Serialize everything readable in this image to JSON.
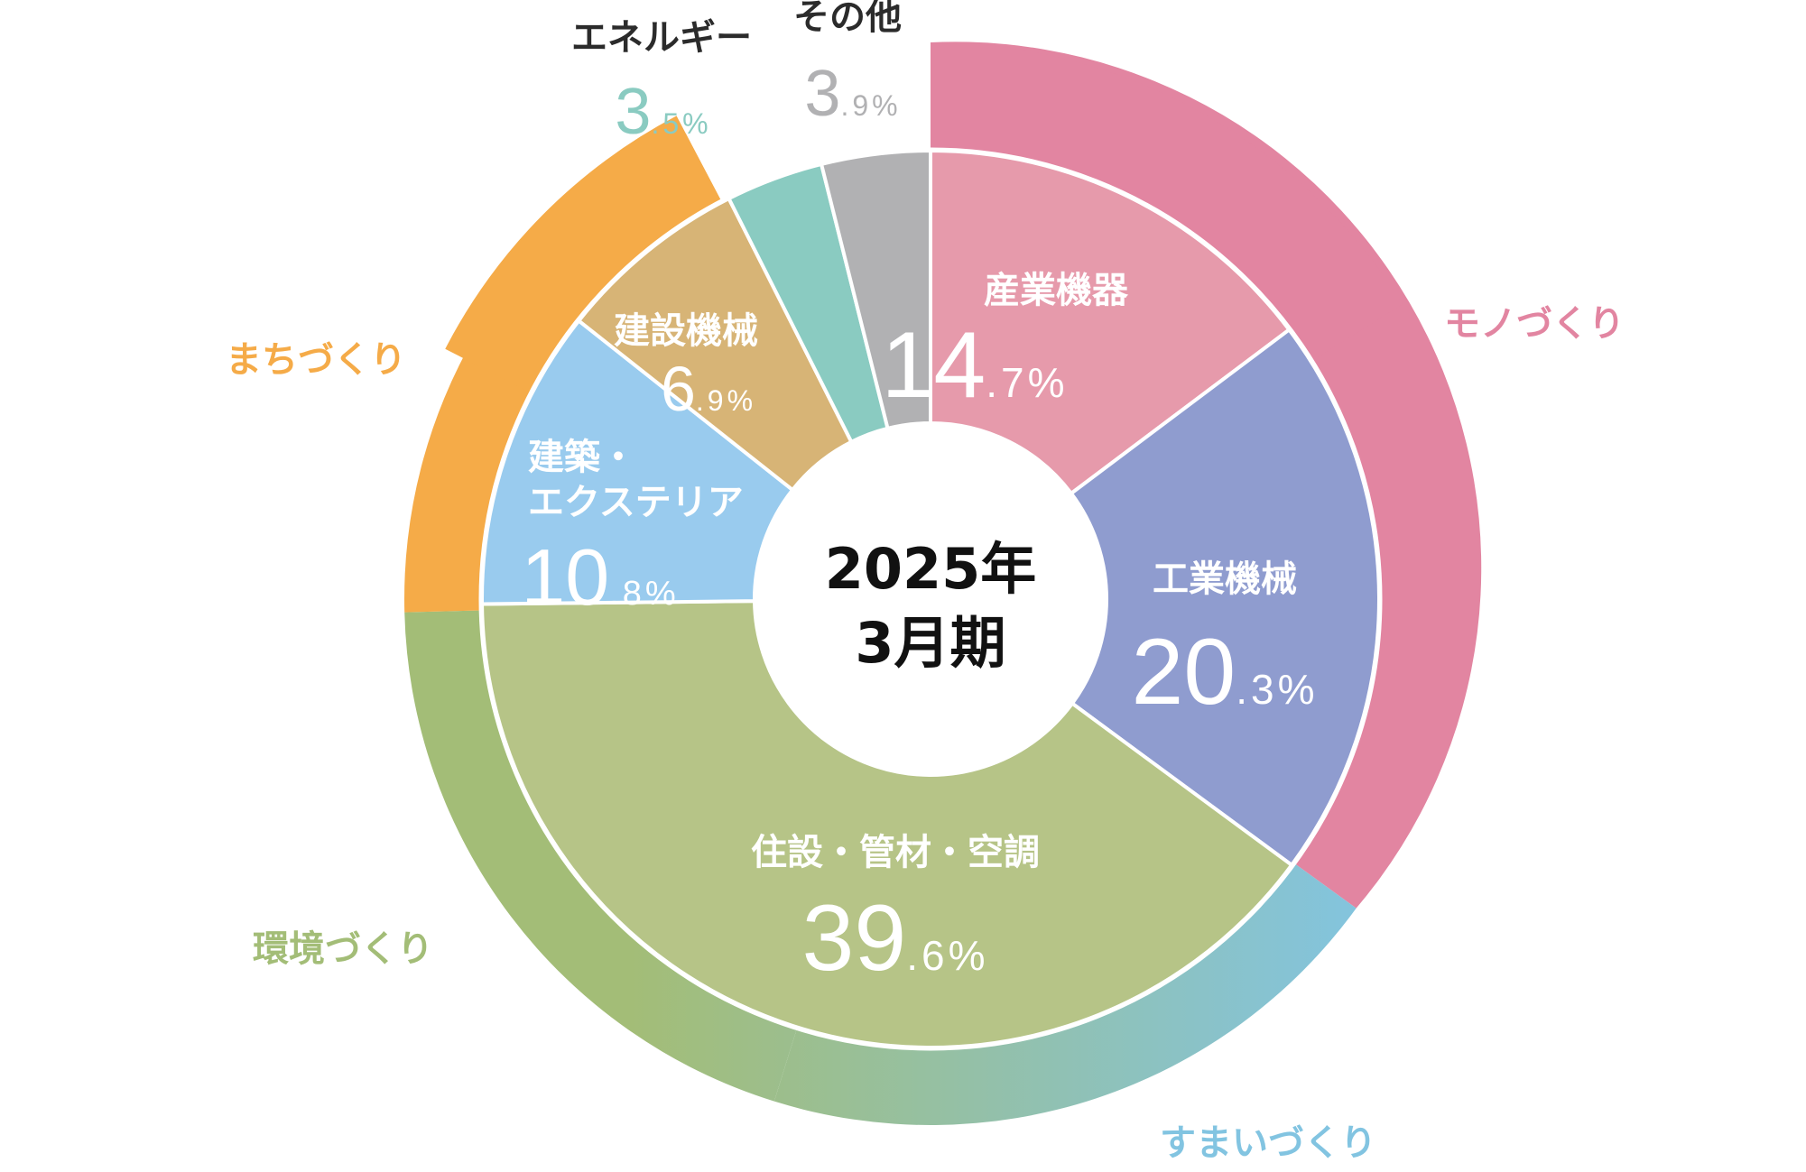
{
  "chart_data": {
    "type": "pie",
    "title": "2025年\n3月期",
    "inner": {
      "slices": [
        {
          "label": "産業機器",
          "value": 14.7,
          "display": [
            "14",
            ".7%"
          ],
          "color": "#e69aab"
        },
        {
          "label": "工業機械",
          "value": 20.3,
          "display": [
            "20",
            ".3%"
          ],
          "color": "#8f9ccf"
        },
        {
          "label": "住設・管材・空調",
          "value": 39.6,
          "display": [
            "39",
            ".6%"
          ],
          "color": "#b6c487"
        },
        {
          "label": "建築・\nエクステリア",
          "value": 10.8,
          "display": [
            "10",
            ".8%"
          ],
          "color": "#99cbee"
        },
        {
          "label": "建設機械",
          "value": 6.9,
          "display": [
            "6",
            ".9%"
          ],
          "color": "#d7b476"
        },
        {
          "label": "エネルギー",
          "value": 3.5,
          "display": [
            "3",
            ".5%"
          ],
          "color": "#8acbc1"
        },
        {
          "label": "その他",
          "value": 3.9,
          "display": [
            "3",
            ".9%"
          ],
          "color": "#b1b1b3"
        }
      ]
    },
    "outer": {
      "segments": [
        {
          "label": "モノづくり",
          "value": 35.0,
          "color": "#e285a1"
        },
        {
          "label": "すまいづくり",
          "value": 19.8,
          "color": "#82c4e1"
        },
        {
          "label": "環境づくり",
          "value": 19.8,
          "color": "#a3bd77"
        },
        {
          "label": "まちづくり",
          "value": 17.7,
          "color": "#f5ab48"
        }
      ]
    }
  }
}
